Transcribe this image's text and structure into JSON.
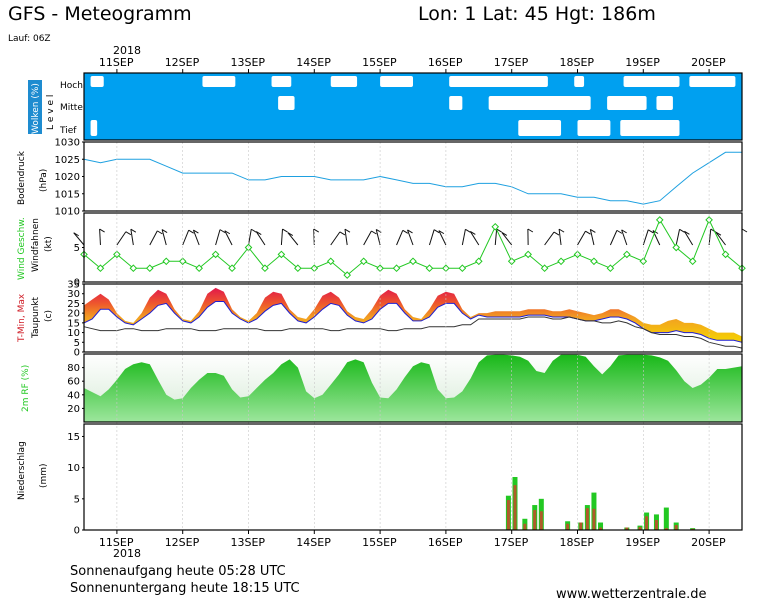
{
  "header": {
    "title": "GFS - Meteogramm",
    "location": "Lon: 1 Lat: 45 Hgt: 186m",
    "run": "Lauf: 06Z"
  },
  "dates": {
    "year": "2018",
    "labels": [
      "11SEP",
      "12SEP",
      "13SEP",
      "14SEP",
      "15SEP",
      "16SEP",
      "17SEP",
      "18SEP",
      "19SEP",
      "20SEP"
    ]
  },
  "footer": {
    "sunrise": "Sonnenaufgang heute 05:28 UTC",
    "sunset": "Sonnenuntergang heute 18:15 UTC",
    "site": "www.wetterzentrale.de"
  },
  "colors": {
    "cloud_bg": "#00a0f0",
    "pressure_line": "#1ea0e0",
    "rh_fill": "#22c822",
    "wind_line": "#22c822",
    "temp_line": "#1e1ed2",
    "dew_line": "#333333",
    "precip_brown": "#b05a2a",
    "precip_green": "#22c822"
  },
  "chart_data": [
    {
      "type": "heatmap",
      "title": "Wolken (%)",
      "ylabel": "L e v e l",
      "levels": [
        "Hoch",
        "Mittel",
        "Tief"
      ],
      "x_unit": "days since 2018-09-10 12Z",
      "clear_patches": [
        {
          "level": "Hoch",
          "x": [
            0.1,
            0.3
          ]
        },
        {
          "level": "Hoch",
          "x": [
            1.8,
            2.3
          ]
        },
        {
          "level": "Hoch",
          "x": [
            2.85,
            3.15
          ]
        },
        {
          "level": "Hoch",
          "x": [
            3.75,
            4.15
          ]
        },
        {
          "level": "Hoch",
          "x": [
            4.5,
            5.0
          ]
        },
        {
          "level": "Hoch",
          "x": [
            5.55,
            7.05
          ]
        },
        {
          "level": "Hoch",
          "x": [
            7.45,
            7.6
          ]
        },
        {
          "level": "Hoch",
          "x": [
            8.2,
            9.05
          ]
        },
        {
          "level": "Hoch",
          "x": [
            9.2,
            9.9
          ]
        },
        {
          "level": "Mittel",
          "x": [
            2.95,
            3.2
          ]
        },
        {
          "level": "Mittel",
          "x": [
            5.55,
            5.75
          ]
        },
        {
          "level": "Mittel",
          "x": [
            6.15,
            7.7
          ]
        },
        {
          "level": "Mittel",
          "x": [
            7.95,
            8.55
          ]
        },
        {
          "level": "Mittel",
          "x": [
            8.7,
            8.95
          ]
        },
        {
          "level": "Tief",
          "x": [
            6.6,
            7.25
          ]
        },
        {
          "level": "Tief",
          "x": [
            7.5,
            8.0
          ]
        },
        {
          "level": "Tief",
          "x": [
            8.15,
            9.05
          ]
        },
        {
          "level": "Tief",
          "x": [
            0.1,
            0.2
          ]
        }
      ]
    },
    {
      "type": "line",
      "title": "Bodendruck",
      "ylabel": "(hPa)",
      "ylim": [
        1010,
        1030
      ],
      "yticks": [
        1010,
        1015,
        1020,
        1025,
        1030
      ],
      "x_unit": "days since 2018-09-10 12Z",
      "x": [
        0,
        0.25,
        0.5,
        0.75,
        1,
        1.25,
        1.5,
        1.75,
        2,
        2.25,
        2.5,
        2.75,
        3,
        3.25,
        3.5,
        3.75,
        4,
        4.25,
        4.5,
        4.75,
        5,
        5.25,
        5.5,
        5.75,
        6,
        6.25,
        6.5,
        6.75,
        7,
        7.25,
        7.5,
        7.75,
        8,
        8.25,
        8.5,
        8.75,
        9,
        9.25,
        9.5,
        9.75,
        10
      ],
      "values": [
        1025,
        1024,
        1025,
        1025,
        1025,
        1023,
        1021,
        1021,
        1021,
        1021,
        1019,
        1019,
        1020,
        1020,
        1020,
        1019,
        1019,
        1019,
        1020,
        1019,
        1018,
        1018,
        1017,
        1017,
        1018,
        1018,
        1017,
        1015,
        1015,
        1015,
        1014,
        1014,
        1013,
        1013,
        1012,
        1013,
        1017,
        1021,
        1024,
        1027,
        1027
      ],
      "series_name": "Bodendruck"
    },
    {
      "type": "line",
      "title": "Wind Geschw.",
      "ylabel": "(kt)",
      "sub_label": "Windfahnen",
      "ylim": [
        0,
        10
      ],
      "yticks": [
        0,
        5
      ],
      "x_unit": "days since 2018-09-10 12Z",
      "x": [
        0,
        0.25,
        0.5,
        0.75,
        1,
        1.25,
        1.5,
        1.75,
        2,
        2.25,
        2.5,
        2.75,
        3,
        3.25,
        3.5,
        3.75,
        4,
        4.25,
        4.5,
        4.75,
        5,
        5.25,
        5.5,
        5.75,
        6,
        6.25,
        6.5,
        6.75,
        7,
        7.25,
        7.5,
        7.75,
        8,
        8.25,
        8.5,
        8.75,
        9,
        9.25,
        9.5,
        9.75,
        10
      ],
      "values": [
        4,
        2,
        4,
        2,
        2,
        3,
        3,
        2,
        4,
        2,
        5,
        2,
        4,
        2,
        2,
        3,
        1,
        3,
        2,
        2,
        3,
        2,
        2,
        2,
        3,
        8,
        3,
        4,
        2,
        3,
        4,
        3,
        2,
        4,
        3,
        9,
        5,
        3,
        9,
        4,
        2
      ],
      "wind_barbs": "north-westerly to northerly shafts along series"
    },
    {
      "type": "area",
      "title": "T-Min, Max",
      "ylabel": "(c)",
      "sub_label": "Taupunkt",
      "ylim": [
        0,
        35
      ],
      "yticks": [
        0,
        5,
        10,
        15,
        20,
        25,
        30,
        35
      ],
      "x_unit": "days since 2018-09-10 12Z",
      "x": [
        0,
        0.125,
        0.25,
        0.375,
        0.5,
        0.625,
        0.75,
        0.875,
        1,
        1.125,
        1.25,
        1.375,
        1.5,
        1.625,
        1.75,
        1.875,
        2,
        2.125,
        2.25,
        2.375,
        2.5,
        2.625,
        2.75,
        2.875,
        3,
        3.125,
        3.25,
        3.375,
        3.5,
        3.625,
        3.75,
        3.875,
        4,
        4.125,
        4.25,
        4.375,
        4.5,
        4.625,
        4.75,
        4.875,
        5,
        5.125,
        5.25,
        5.375,
        5.5,
        5.625,
        5.75,
        5.875,
        6,
        6.125,
        6.25,
        6.375,
        6.5,
        6.625,
        6.75,
        6.875,
        7,
        7.125,
        7.25,
        7.375,
        7.5,
        7.625,
        7.75,
        7.875,
        8,
        8.125,
        8.25,
        8.375,
        8.5,
        8.625,
        8.75,
        8.875,
        9,
        9.125,
        9.25,
        9.375,
        9.5,
        9.625,
        9.75,
        9.875,
        10
      ],
      "t_max": [
        24,
        27,
        30,
        27,
        20,
        16,
        15,
        20,
        28,
        32,
        30,
        22,
        17,
        16,
        21,
        30,
        33,
        31,
        22,
        18,
        16,
        20,
        28,
        31,
        30,
        22,
        18,
        17,
        22,
        29,
        31,
        28,
        21,
        18,
        17,
        22,
        29,
        32,
        30,
        22,
        18,
        17,
        22,
        29,
        31,
        30,
        22,
        18,
        20,
        20,
        21,
        21,
        21,
        21,
        22,
        22,
        22,
        21,
        21,
        22,
        21,
        20,
        19,
        20,
        22,
        22,
        20,
        18,
        15,
        14,
        14,
        16,
        17,
        15,
        15,
        14,
        12,
        10,
        10,
        10,
        8
      ],
      "t_min": [
        15,
        17,
        22,
        22,
        18,
        15,
        14,
        17,
        20,
        24,
        25,
        20,
        16,
        15,
        18,
        23,
        26,
        26,
        20,
        17,
        15,
        17,
        21,
        24,
        25,
        20,
        16,
        15,
        18,
        22,
        25,
        24,
        19,
        16,
        15,
        17,
        22,
        25,
        25,
        20,
        16,
        16,
        18,
        23,
        25,
        25,
        20,
        17,
        19,
        18,
        18,
        18,
        18,
        18,
        19,
        19,
        19,
        18,
        18,
        18,
        17,
        16,
        16,
        17,
        18,
        18,
        17,
        15,
        12,
        10,
        10,
        10,
        11,
        10,
        10,
        9,
        7,
        6,
        6,
        6,
        5
      ],
      "dewpoint": [
        13,
        12,
        11,
        11,
        11,
        12,
        12,
        11,
        11,
        11,
        12,
        12,
        12,
        12,
        11,
        11,
        11,
        12,
        12,
        12,
        12,
        12,
        11,
        11,
        11,
        12,
        12,
        12,
        12,
        12,
        11,
        11,
        12,
        12,
        12,
        12,
        12,
        11,
        11,
        12,
        12,
        12,
        13,
        13,
        13,
        13,
        14,
        14,
        17,
        17,
        17,
        17,
        17,
        17,
        18,
        18,
        18,
        17,
        17,
        18,
        17,
        16,
        16,
        15,
        15,
        16,
        15,
        13,
        12,
        10,
        9,
        9,
        9,
        8,
        8,
        7,
        5,
        4,
        3,
        3,
        2
      ],
      "fill_band": "orange between T-Min and T-Max, red near peak, yellow for cooler period"
    },
    {
      "type": "area",
      "title": "2m RF (%)",
      "ylim": [
        0,
        100
      ],
      "yticks": [
        20,
        40,
        60,
        80
      ],
      "x_unit": "days since 2018-09-10 12Z",
      "x": [
        0,
        0.125,
        0.25,
        0.375,
        0.5,
        0.625,
        0.75,
        0.875,
        1,
        1.125,
        1.25,
        1.375,
        1.5,
        1.625,
        1.75,
        1.875,
        2,
        2.125,
        2.25,
        2.375,
        2.5,
        2.625,
        2.75,
        2.875,
        3,
        3.125,
        3.25,
        3.375,
        3.5,
        3.625,
        3.75,
        3.875,
        4,
        4.125,
        4.25,
        4.375,
        4.5,
        4.625,
        4.75,
        4.875,
        5,
        5.125,
        5.25,
        5.375,
        5.5,
        5.625,
        5.75,
        5.875,
        6,
        6.125,
        6.25,
        6.375,
        6.5,
        6.625,
        6.75,
        6.875,
        7,
        7.125,
        7.25,
        7.375,
        7.5,
        7.625,
        7.75,
        7.875,
        8,
        8.125,
        8.25,
        8.375,
        8.5,
        8.625,
        8.75,
        8.875,
        9,
        9.125,
        9.25,
        9.375,
        9.5,
        9.625,
        9.75,
        9.875,
        10
      ],
      "values": [
        50,
        44,
        38,
        48,
        62,
        78,
        85,
        88,
        85,
        62,
        40,
        33,
        35,
        50,
        62,
        72,
        72,
        68,
        48,
        36,
        38,
        50,
        62,
        72,
        85,
        92,
        80,
        45,
        35,
        40,
        55,
        70,
        88,
        92,
        88,
        58,
        36,
        35,
        48,
        66,
        82,
        88,
        85,
        48,
        35,
        36,
        45,
        64,
        88,
        98,
        99,
        99,
        98,
        96,
        90,
        75,
        72,
        90,
        99,
        99,
        99,
        96,
        82,
        70,
        82,
        98,
        99,
        99,
        99,
        98,
        95,
        90,
        76,
        60,
        50,
        55,
        65,
        78,
        78,
        80,
        82
      ]
    },
    {
      "type": "bar",
      "title": "Niederschlag",
      "ylabel": "(mm)",
      "ylim": [
        0,
        17
      ],
      "yticks": [
        0,
        5,
        10,
        15
      ],
      "x_unit": "days since 2018-09-10 12Z",
      "series": [
        {
          "name": "Niederschlag",
          "x": [
            6.45,
            6.55,
            6.7,
            6.85,
            6.95,
            7.35,
            7.55,
            7.65,
            7.75,
            7.85,
            8.25,
            8.45,
            8.55,
            8.7,
            8.85,
            9.0,
            9.25
          ],
          "values": [
            5.5,
            8.5,
            1.8,
            4.0,
            5.0,
            1.4,
            1.2,
            4.0,
            6.0,
            1.2,
            0.4,
            0.7,
            2.8,
            2.5,
            3.6,
            1.2,
            0.3
          ],
          "brown_part": [
            4.8,
            7.2,
            1.0,
            3.2,
            3.0,
            1.0,
            1.2,
            3.5,
            3.4,
            0.4,
            0.4,
            0.5,
            2.2,
            1.6,
            0.3,
            0.8,
            0.2
          ]
        }
      ]
    }
  ]
}
